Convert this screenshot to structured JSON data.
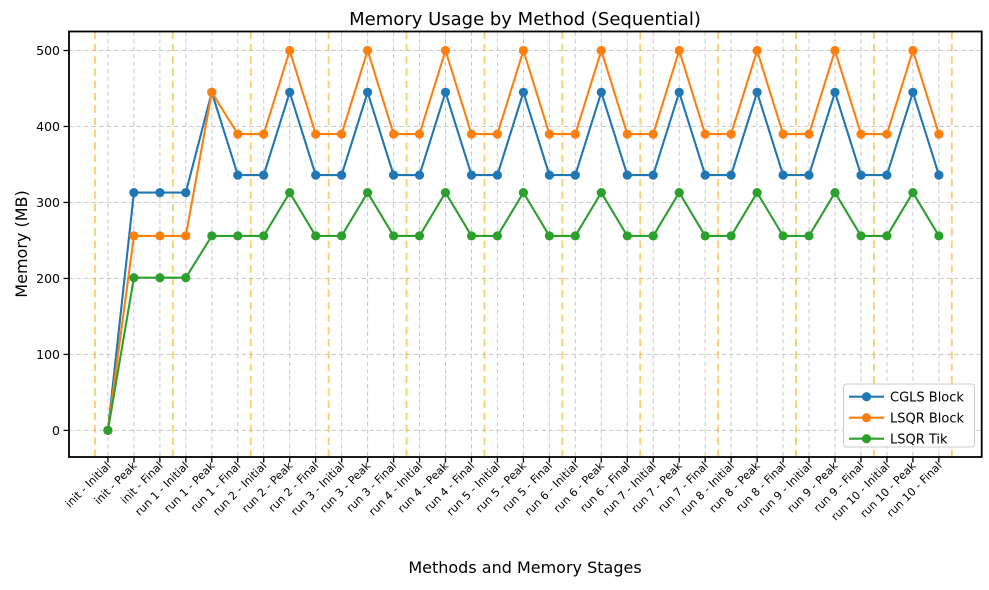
{
  "chart_data": {
    "type": "line",
    "title": "Memory Usage by Method (Sequential)",
    "xlabel": "Methods and Memory Stages",
    "ylabel": "Memory (MB)",
    "categories": [
      "init - Initial",
      "init - Peak",
      "init - Final",
      "run 1 - Initial",
      "run 1 - Peak",
      "run 1 - Final",
      "run 2 - Initial",
      "run 2 - Peak",
      "run 2 - Final",
      "run 3 - Initial",
      "run 3 - Peak",
      "run 3 - Final",
      "run 4 - Initial",
      "run 4 - Peak",
      "run 4 - Final",
      "run 5 - Initial",
      "run 5 - Peak",
      "run 5 - Final",
      "run 6 - Initial",
      "run 6 - Peak",
      "run 6 - Final",
      "run 7 - Initial",
      "run 7 - Peak",
      "run 7 - Final",
      "run 8 - Initial",
      "run 8 - Peak",
      "run 8 - Final",
      "run 9 - Initial",
      "run 9 - Peak",
      "run 9 - Final",
      "run 10 - Initial",
      "run 10 - Peak",
      "run 10 - Final"
    ],
    "series": [
      {
        "name": "CGLS Block",
        "color": "#1f77b4",
        "values": [
          0,
          313,
          313,
          313,
          445,
          336,
          336,
          445,
          336,
          336,
          445,
          336,
          336,
          445,
          336,
          336,
          445,
          336,
          336,
          445,
          336,
          336,
          445,
          336,
          336,
          445,
          336,
          336,
          445,
          336,
          336,
          445,
          336
        ]
      },
      {
        "name": "LSQR Block",
        "color": "#ff7f0e",
        "values": [
          0,
          256,
          256,
          256,
          445,
          390,
          390,
          500,
          390,
          390,
          500,
          390,
          390,
          500,
          390,
          390,
          500,
          390,
          390,
          500,
          390,
          390,
          500,
          390,
          390,
          500,
          390,
          390,
          500,
          390,
          390,
          500,
          390
        ]
      },
      {
        "name": "LSQR Tik",
        "color": "#2ca02c",
        "values": [
          0,
          201,
          201,
          201,
          256,
          256,
          256,
          313,
          256,
          256,
          313,
          256,
          256,
          313,
          256,
          256,
          313,
          256,
          256,
          313,
          256,
          256,
          313,
          256,
          256,
          313,
          256,
          256,
          313,
          256,
          256,
          313,
          256
        ]
      }
    ],
    "yticks": [
      0,
      100,
      200,
      300,
      400,
      500
    ],
    "ylim": [
      -35,
      525
    ],
    "xlim": [
      -1.5,
      33.65
    ],
    "grid": true,
    "legend_position": "lower right",
    "separators": {
      "color": "#ffa500",
      "positions": [
        -0.5,
        2.5,
        5.5,
        8.5,
        11.5,
        14.5,
        17.5,
        20.5,
        23.5,
        26.5,
        29.5,
        32.5
      ]
    }
  }
}
